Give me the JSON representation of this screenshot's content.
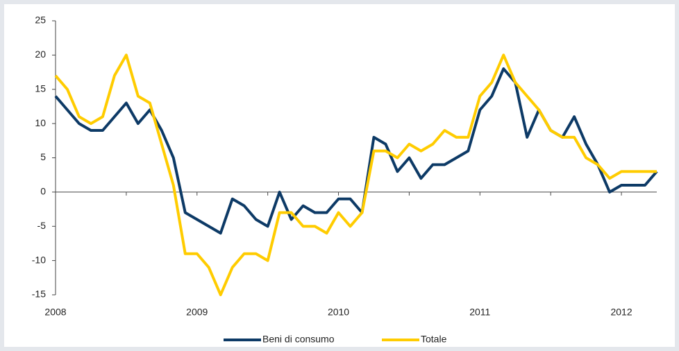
{
  "chart_data": {
    "type": "line",
    "categories": [
      "2008",
      null,
      null,
      null,
      null,
      null,
      null,
      null,
      null,
      null,
      null,
      null,
      "2009",
      null,
      null,
      null,
      null,
      null,
      null,
      null,
      null,
      null,
      null,
      null,
      "2010",
      null,
      null,
      null,
      null,
      null,
      null,
      null,
      null,
      null,
      null,
      null,
      "2011",
      null,
      null,
      null,
      null,
      null,
      null,
      null,
      null,
      null,
      null,
      null,
      "2012",
      null,
      null,
      null
    ],
    "series": [
      {
        "name": "Beni di consumo",
        "color": "#0d3a66",
        "values": [
          14,
          12,
          10,
          9,
          9,
          11,
          13,
          10,
          12,
          9,
          5,
          -3,
          -4,
          -5,
          -6,
          -1,
          -2,
          -4,
          -5,
          0,
          -4,
          -2,
          -3,
          -3,
          -1,
          -1,
          -3,
          8,
          7,
          3,
          5,
          2,
          4,
          4,
          5,
          6,
          12,
          14,
          18,
          16,
          8,
          12,
          9,
          8,
          11,
          7,
          4,
          0,
          1,
          1,
          1,
          3
        ]
      },
      {
        "name": "Totale",
        "color": "#ffcc00",
        "values": [
          17,
          15,
          11,
          10,
          11,
          17,
          20,
          14,
          13,
          7,
          1,
          -9,
          -9,
          -11,
          -15,
          -11,
          -9,
          -9,
          -10,
          -3,
          -3,
          -5,
          -5,
          -6,
          -3,
          -5,
          -3,
          6,
          6,
          5,
          7,
          6,
          7,
          9,
          8,
          8,
          14,
          16,
          20,
          16,
          14,
          12,
          9,
          8,
          8,
          5,
          4,
          2,
          3,
          3,
          3,
          3
        ]
      }
    ],
    "ylim": [
      -15,
      25
    ],
    "yticks": [
      -15,
      -10,
      -5,
      0,
      5,
      10,
      15,
      20,
      25
    ],
    "grid": false,
    "legend": "bottom"
  }
}
